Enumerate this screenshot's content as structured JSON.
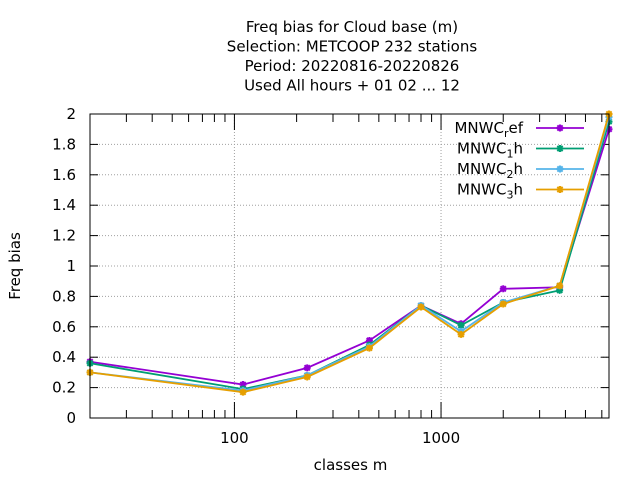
{
  "chart_data": {
    "type": "line",
    "title_lines": [
      "Freq bias  for Cloud base (m)",
      "Selection: METCOOP    232 stations",
      "Period: 20220816-20220826",
      "Used  All hours  + 01 02 ... 12"
    ],
    "xlabel": "classes m",
    "ylabel": "Freq bias",
    "x_scale": "log",
    "xlim": [
      20,
      6500
    ],
    "ylim": [
      0,
      2
    ],
    "x_ticks": [
      100,
      1000
    ],
    "x_tick_labels": [
      "100",
      "1000"
    ],
    "y_ticks": [
      0,
      0.2,
      0.4,
      0.6,
      0.8,
      1,
      1.2,
      1.4,
      1.6,
      1.8,
      2
    ],
    "y_tick_labels": [
      "0",
      "0.2",
      "0.4",
      "0.6",
      "0.8",
      "1",
      "1.2",
      "1.4",
      "1.6",
      "1.8",
      "2"
    ],
    "grid": true,
    "legend_position": "top-right",
    "x": [
      20,
      110,
      225,
      450,
      800,
      1250,
      2000,
      3750,
      6500
    ],
    "series": [
      {
        "name": "MNWC",
        "sub": "r",
        "suffix": "ef",
        "color": "#9400d3",
        "values": [
          0.37,
          0.22,
          0.33,
          0.51,
          0.74,
          0.62,
          0.85,
          0.86,
          1.9
        ]
      },
      {
        "name": "MNWC",
        "sub": "1",
        "suffix": "h",
        "color": "#009e73",
        "values": [
          0.36,
          0.19,
          0.28,
          0.48,
          0.74,
          0.61,
          0.76,
          0.84,
          1.95
        ]
      },
      {
        "name": "MNWC",
        "sub": "2",
        "suffix": "h",
        "color": "#56b4e9",
        "values": [
          0.3,
          0.18,
          0.28,
          0.47,
          0.74,
          0.57,
          0.76,
          0.87,
          1.98
        ]
      },
      {
        "name": "MNWC",
        "sub": "3",
        "suffix": "h",
        "color": "#e69f00",
        "values": [
          0.3,
          0.17,
          0.27,
          0.46,
          0.73,
          0.55,
          0.75,
          0.87,
          2.0
        ]
      }
    ]
  }
}
